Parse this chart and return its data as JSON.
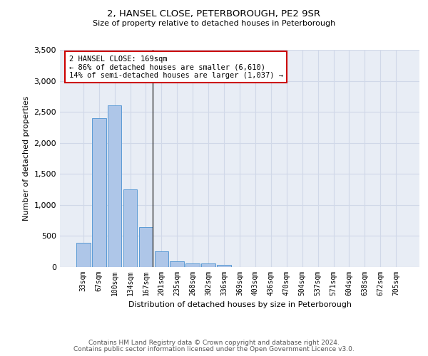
{
  "title": "2, HANSEL CLOSE, PETERBOROUGH, PE2 9SR",
  "subtitle": "Size of property relative to detached houses in Peterborough",
  "xlabel": "Distribution of detached houses by size in Peterborough",
  "ylabel": "Number of detached properties",
  "categories": [
    "33sqm",
    "67sqm",
    "100sqm",
    "134sqm",
    "167sqm",
    "201sqm",
    "235sqm",
    "268sqm",
    "302sqm",
    "336sqm",
    "369sqm",
    "403sqm",
    "436sqm",
    "470sqm",
    "504sqm",
    "537sqm",
    "571sqm",
    "604sqm",
    "638sqm",
    "672sqm",
    "705sqm"
  ],
  "values": [
    390,
    2400,
    2610,
    1250,
    640,
    255,
    95,
    60,
    55,
    40,
    0,
    0,
    0,
    0,
    0,
    0,
    0,
    0,
    0,
    0,
    0
  ],
  "bar_color": "#aec6e8",
  "bar_edge_color": "#5b9bd5",
  "vline_index": 4,
  "vline_color": "#333333",
  "annotation_text": "2 HANSEL CLOSE: 169sqm\n← 86% of detached houses are smaller (6,610)\n14% of semi-detached houses are larger (1,037) →",
  "annotation_box_color": "#ffffff",
  "annotation_box_edge_color": "#cc0000",
  "ylim": [
    0,
    3500
  ],
  "yticks": [
    0,
    500,
    1000,
    1500,
    2000,
    2500,
    3000,
    3500
  ],
  "grid_color": "#d0d8e8",
  "bg_color": "#e8edf5",
  "title_fontsize": 9.5,
  "subtitle_fontsize": 8,
  "footer1": "Contains HM Land Registry data © Crown copyright and database right 2024.",
  "footer2": "Contains public sector information licensed under the Open Government Licence v3.0."
}
